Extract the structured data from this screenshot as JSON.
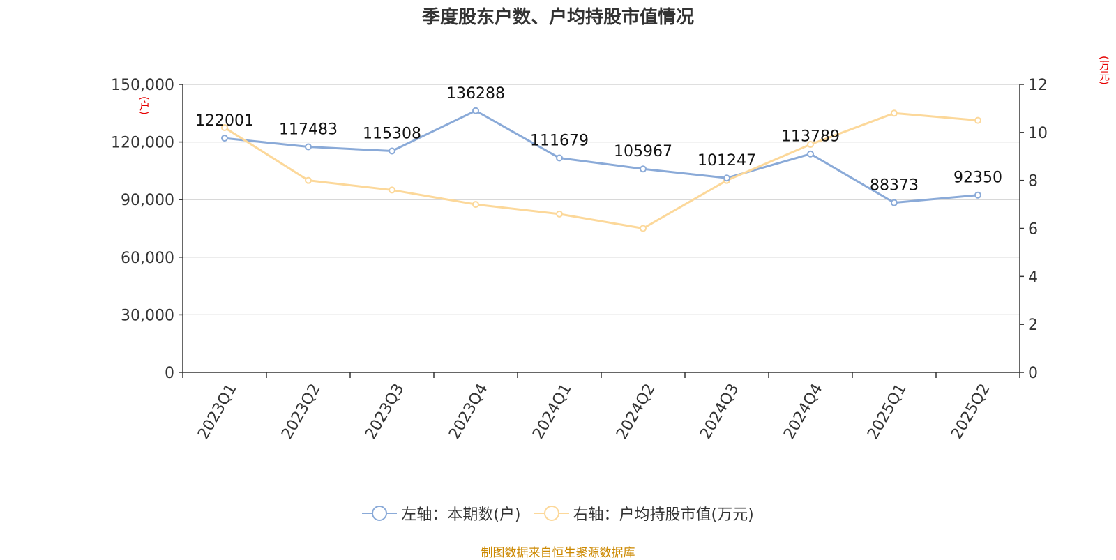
{
  "title": "季度股东户数、户均持股市值情况",
  "left_unit": "(户)",
  "right_unit": "(万元)",
  "source": "制图数据来自恒生聚源数据库",
  "colors": {
    "left_series": "#8aaad8",
    "right_series": "#fcd89a",
    "axis": "#333333",
    "grid": "#cccccc",
    "text": "#333333",
    "unit_red": "#e60000",
    "source": "#cc8800"
  },
  "chart_data": {
    "type": "line",
    "categories": [
      "2023Q1",
      "2023Q2",
      "2023Q3",
      "2023Q4",
      "2024Q1",
      "2024Q2",
      "2024Q3",
      "2024Q4",
      "2025Q1",
      "2025Q2"
    ],
    "y_left": {
      "min": 0,
      "max": 150000,
      "ticks": [
        0,
        30000,
        60000,
        90000,
        120000,
        150000
      ],
      "tick_labels": [
        "0",
        "30,000",
        "60,000",
        "90,000",
        "120,000",
        "150,000"
      ]
    },
    "y_right": {
      "min": 0,
      "max": 12,
      "ticks": [
        0,
        2,
        4,
        6,
        8,
        10,
        12
      ],
      "tick_labels": [
        "0",
        "2",
        "4",
        "6",
        "8",
        "10",
        "12"
      ]
    },
    "grid": true,
    "legend_position": "bottom",
    "series": [
      {
        "name": "左轴：本期数(户)",
        "axis": "left",
        "color": "#8aaad8",
        "values": [
          122001,
          117483,
          115308,
          136288,
          111679,
          105967,
          101247,
          113789,
          88373,
          92350
        ],
        "labels": [
          "122001",
          "117483",
          "115308",
          "136288",
          "111679",
          "105967",
          "101247",
          "113789",
          "88373",
          "92350"
        ]
      },
      {
        "name": "右轴：户均持股市值(万元)",
        "axis": "right",
        "color": "#fcd89a",
        "values": [
          10.2,
          8.0,
          7.6,
          7.0,
          6.6,
          6.0,
          8.0,
          9.5,
          10.8,
          10.5
        ]
      }
    ]
  }
}
